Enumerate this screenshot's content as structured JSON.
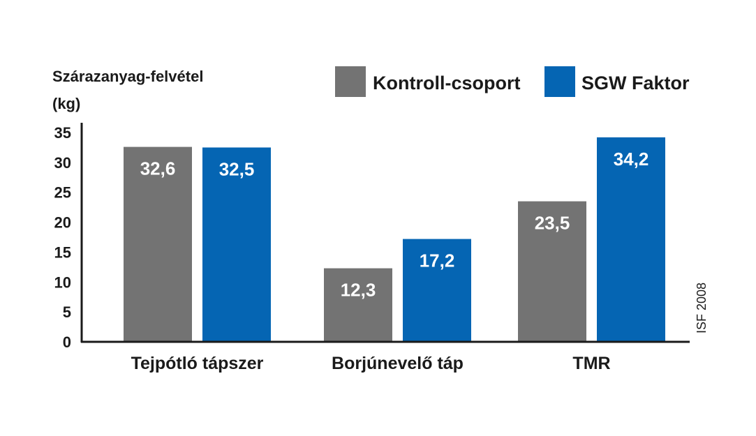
{
  "chart_data": {
    "type": "bar",
    "ylabel_lines": [
      "Szárazanyag-felvétel",
      "(kg)"
    ],
    "categories": [
      "Tejpótló tápszer",
      "Borjúnevelő táp",
      "TMR"
    ],
    "series": [
      {
        "name": "Kontroll-csoport",
        "color": "#737373",
        "values": [
          32.6,
          12.3,
          23.5
        ],
        "labels": [
          "32,6",
          "12,3",
          "23,5"
        ]
      },
      {
        "name": "SGW Faktor",
        "color": "#0565b3",
        "values": [
          32.5,
          17.2,
          34.2
        ],
        "labels": [
          "32,5",
          "17,2",
          "34,2"
        ]
      }
    ],
    "ylim": [
      0,
      35
    ],
    "yticks": [
      0,
      5,
      10,
      15,
      20,
      25,
      30,
      35
    ],
    "grid": false,
    "legend_position": "top-right",
    "source_note": "ISF 2008"
  }
}
